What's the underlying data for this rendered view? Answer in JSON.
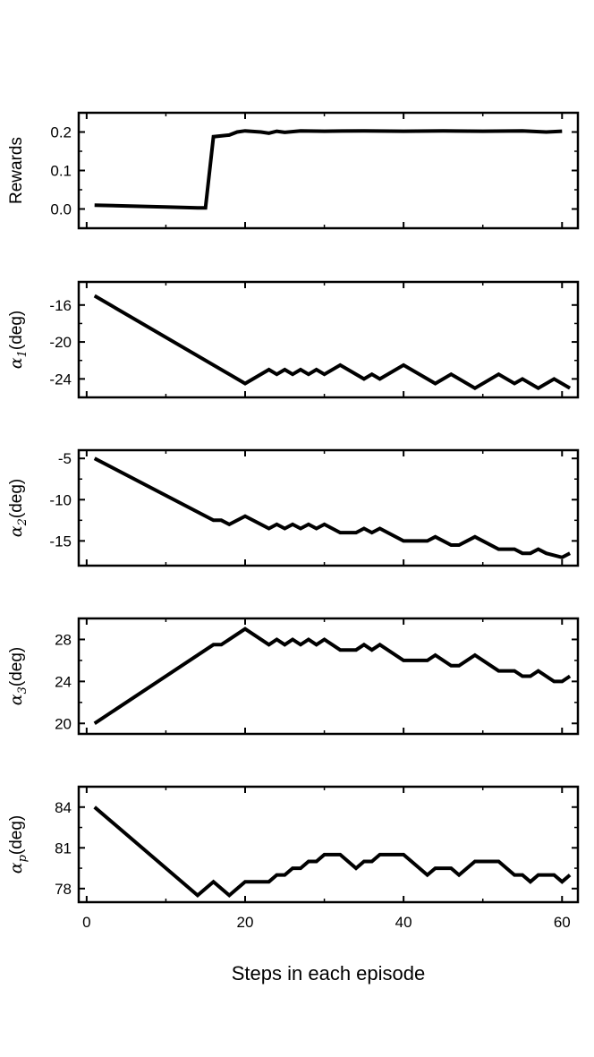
{
  "chart_data": {
    "type": "line",
    "xlabel": "Steps in each episode",
    "xlim": [
      -1,
      62
    ],
    "xticks": [
      0,
      20,
      40,
      60
    ],
    "grid": false,
    "panels": [
      {
        "ylabel": "Rewards",
        "ylim": [
          -0.05,
          0.25
        ],
        "yticks": [
          0.0,
          0.1,
          0.2
        ],
        "tick_labels": [
          "0.0",
          "0.1",
          "0.2"
        ],
        "x": [
          1,
          5,
          10,
          14,
          15,
          16,
          18,
          19,
          20,
          22,
          23,
          24,
          25,
          27,
          30,
          35,
          40,
          45,
          50,
          55,
          58,
          60
        ],
        "values": [
          0.01,
          0.008,
          0.005,
          0.003,
          0.003,
          0.188,
          0.192,
          0.2,
          0.203,
          0.2,
          0.197,
          0.202,
          0.199,
          0.203,
          0.202,
          0.203,
          0.202,
          0.203,
          0.202,
          0.203,
          0.2,
          0.202
        ]
      },
      {
        "ylabel_symbol": "α",
        "ylabel_sub": "1",
        "ylabel_unit": "(deg)",
        "ylim": [
          -26,
          -13.5
        ],
        "yticks": [
          -16,
          -20,
          -24
        ],
        "tick_labels": [
          "-16",
          "-20",
          "-24"
        ],
        "x": [
          1,
          20,
          23,
          24,
          25,
          26,
          27,
          28,
          29,
          30,
          32,
          35,
          36,
          37,
          40,
          44,
          46,
          49,
          52,
          54,
          55,
          57,
          59,
          61
        ],
        "values": [
          -15,
          -24.5,
          -23,
          -23.5,
          -23,
          -23.5,
          -23,
          -23.5,
          -23,
          -23.5,
          -22.5,
          -24,
          -23.5,
          -24,
          -22.5,
          -24.5,
          -23.5,
          -25,
          -23.5,
          -24.5,
          -24,
          -25,
          -24,
          -25
        ]
      },
      {
        "ylabel_symbol": "α",
        "ylabel_sub": "2",
        "ylabel_unit": "(deg)",
        "ylim": [
          -18,
          -4
        ],
        "yticks": [
          -5,
          -10,
          -15
        ],
        "tick_labels": [
          "-5",
          "-10",
          "-15"
        ],
        "x": [
          1,
          16,
          17,
          18,
          20,
          23,
          24,
          25,
          26,
          27,
          28,
          29,
          30,
          32,
          34,
          35,
          36,
          37,
          40,
          43,
          44,
          46,
          47,
          49,
          52,
          54,
          55,
          56,
          57,
          58,
          60,
          61
        ],
        "values": [
          -5,
          -12.5,
          -12.5,
          -13,
          -12,
          -13.5,
          -13,
          -13.5,
          -13,
          -13.5,
          -13,
          -13.5,
          -13,
          -14,
          -14,
          -13.5,
          -14,
          -13.5,
          -15,
          -15,
          -14.5,
          -15.5,
          -15.5,
          -14.5,
          -16,
          -16,
          -16.5,
          -16.5,
          -16,
          -16.5,
          -17,
          -16.5
        ]
      },
      {
        "ylabel_symbol": "α",
        "ylabel_sub": "3",
        "ylabel_unit": "(deg)",
        "ylim": [
          19,
          30
        ],
        "yticks": [
          20,
          24,
          28
        ],
        "tick_labels": [
          "20",
          "24",
          "28"
        ],
        "x": [
          1,
          16,
          17,
          20,
          23,
          24,
          25,
          26,
          27,
          28,
          29,
          30,
          32,
          34,
          35,
          36,
          37,
          40,
          43,
          44,
          46,
          47,
          49,
          52,
          54,
          55,
          56,
          57,
          59,
          60,
          61
        ],
        "values": [
          20,
          27.5,
          27.5,
          29,
          27.5,
          28,
          27.5,
          28,
          27.5,
          28,
          27.5,
          28,
          27,
          27,
          27.5,
          27,
          27.5,
          26,
          26,
          26.5,
          25.5,
          25.5,
          26.5,
          25,
          25,
          24.5,
          24.5,
          25,
          24,
          24,
          24.5
        ]
      },
      {
        "ylabel_symbol": "α",
        "ylabel_sub": "p",
        "ylabel_unit": "(deg)",
        "ylim": [
          77,
          85.5
        ],
        "yticks": [
          78,
          81,
          84
        ],
        "tick_labels": [
          "78",
          "81",
          "84"
        ],
        "x": [
          1,
          14,
          16,
          18,
          20,
          23,
          24,
          25,
          26,
          27,
          28,
          29,
          30,
          32,
          34,
          35,
          36,
          37,
          40,
          43,
          44,
          46,
          47,
          49,
          52,
          54,
          55,
          56,
          57,
          59,
          60,
          61
        ],
        "values": [
          84,
          77.5,
          78.5,
          77.5,
          78.5,
          78.5,
          79,
          79,
          79.5,
          79.5,
          80,
          80,
          80.5,
          80.5,
          79.5,
          80,
          80,
          80.5,
          80.5,
          79,
          79.5,
          79.5,
          79,
          80,
          80,
          79,
          79,
          78.5,
          79,
          79,
          78.5,
          79
        ]
      }
    ]
  }
}
